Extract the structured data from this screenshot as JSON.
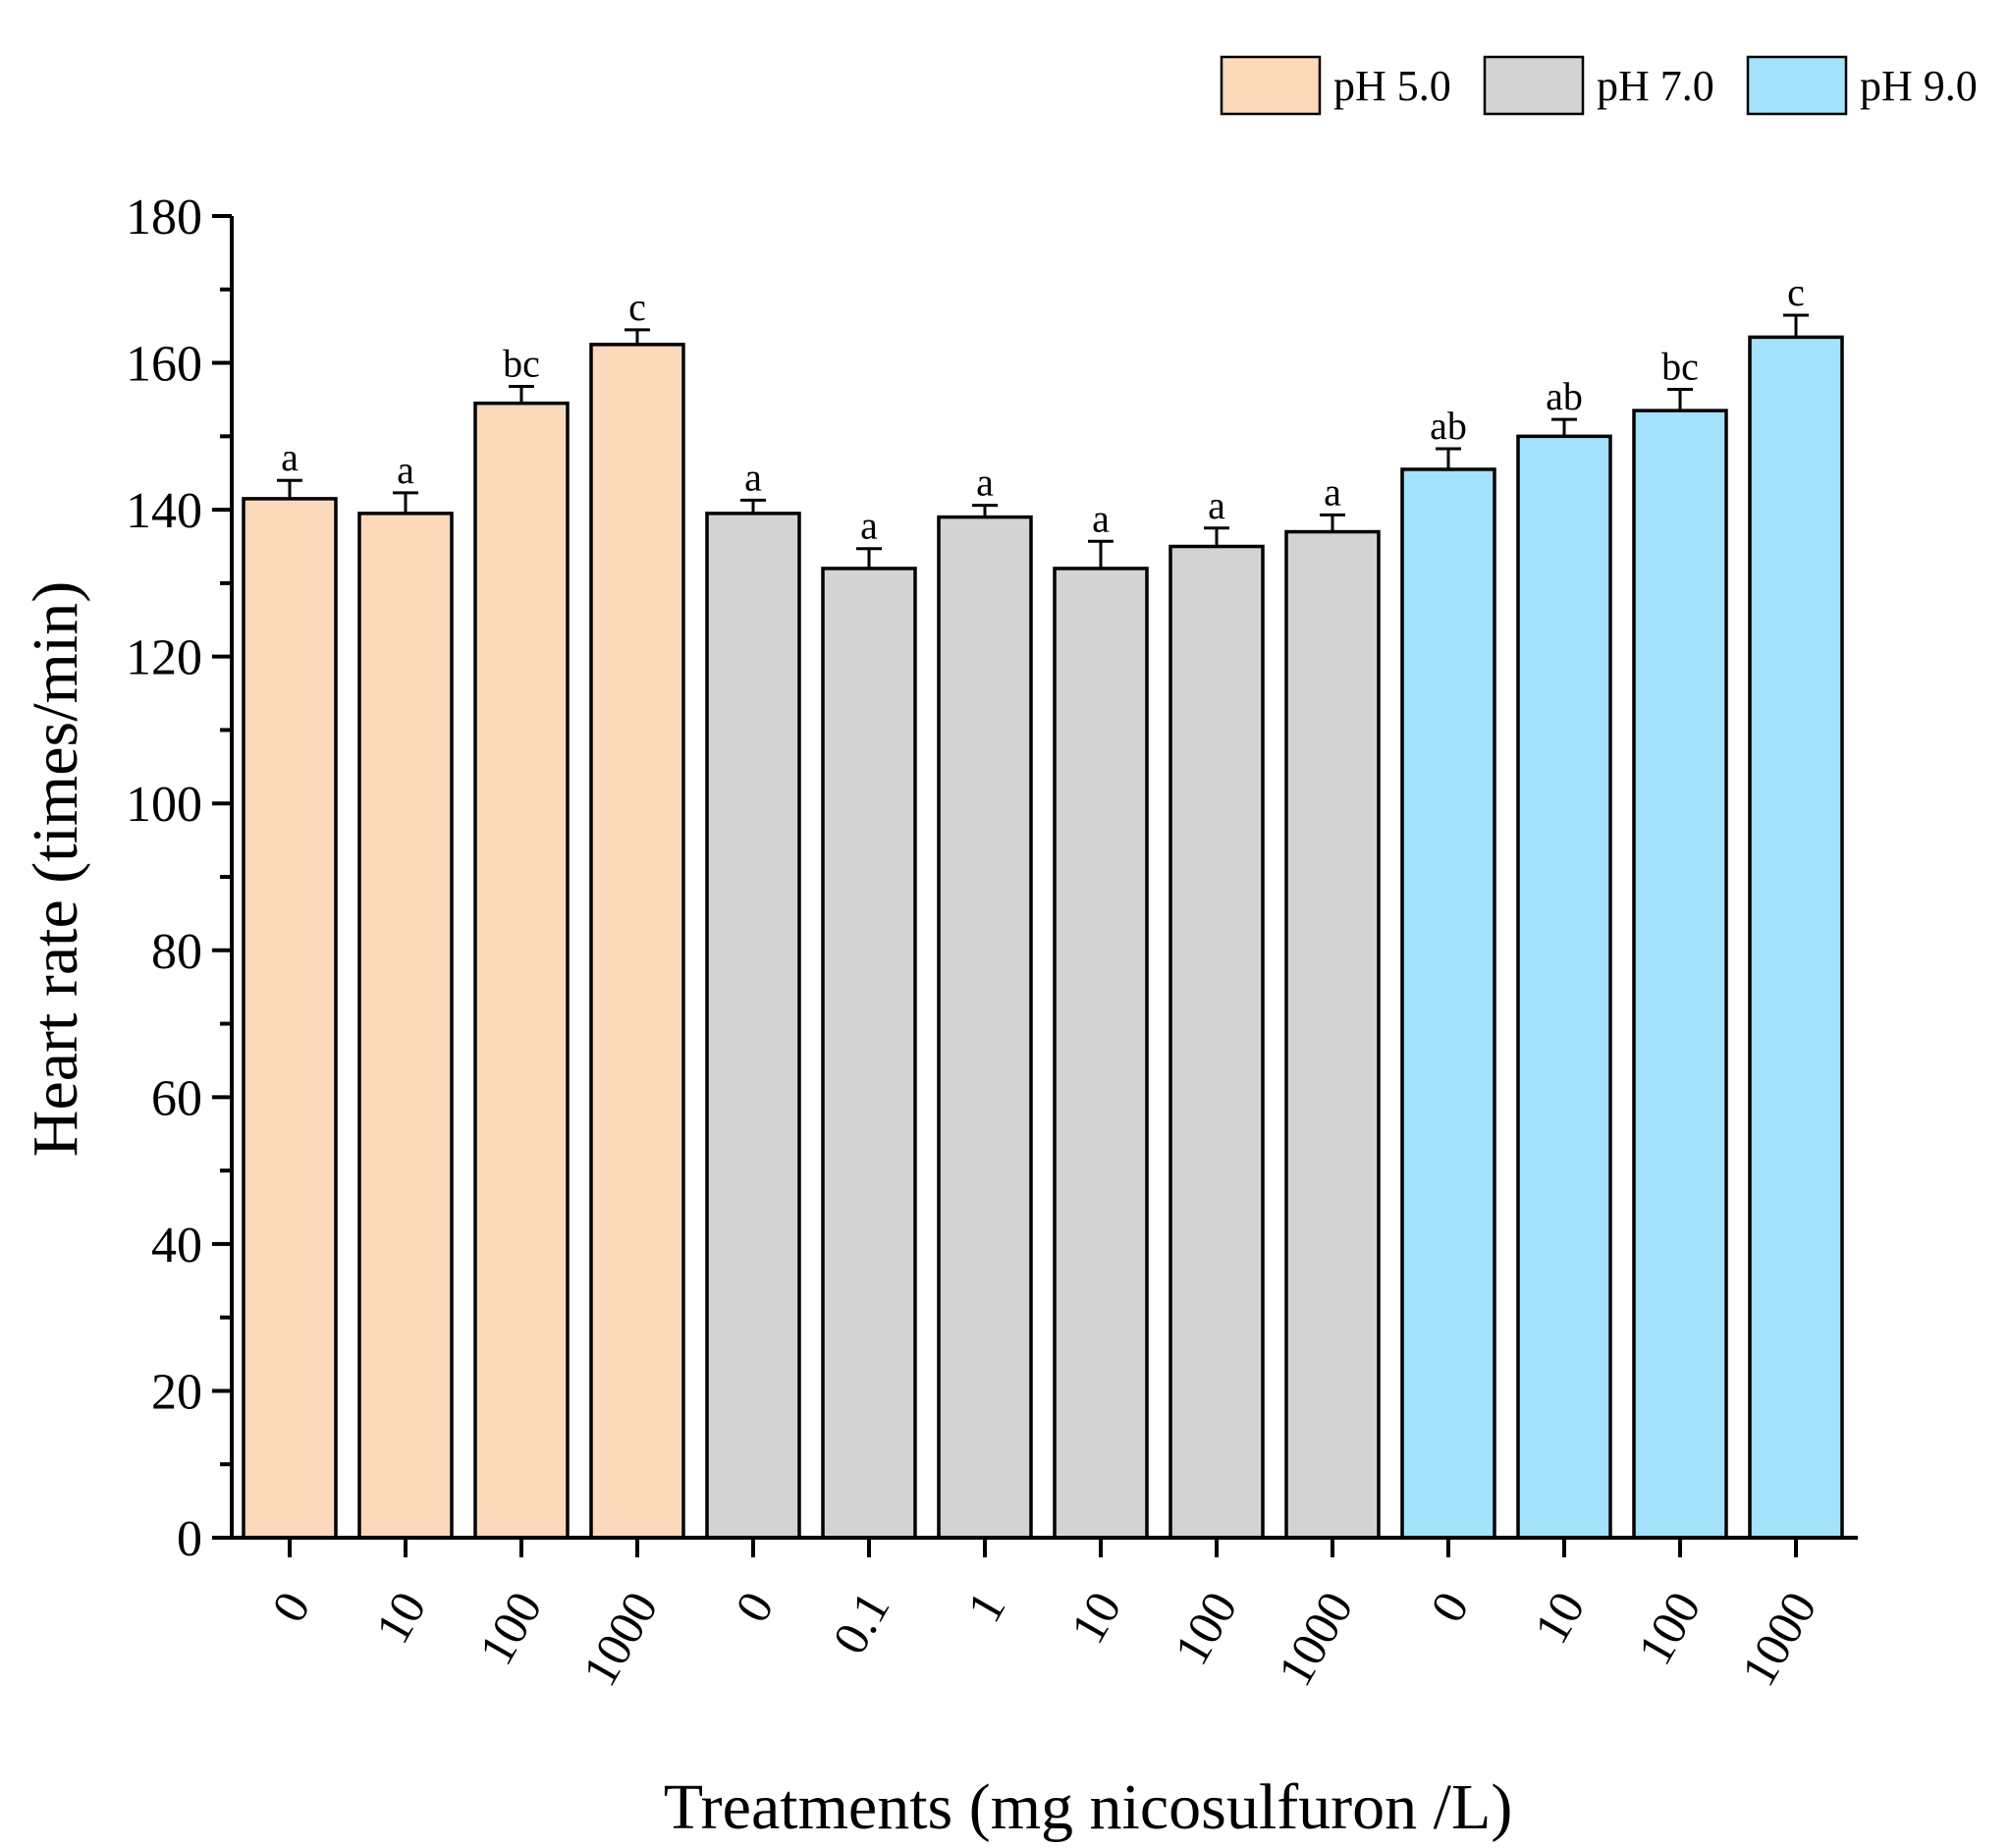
{
  "chart_data": {
    "type": "bar",
    "xlabel": "Treatments (mg nicosulfuron /L)",
    "ylabel": "Heart rate (times/min)",
    "ylim": [
      0,
      180
    ],
    "yticks": [
      "0",
      "20",
      "40",
      "60",
      "80",
      "100",
      "120",
      "140",
      "160",
      "180"
    ],
    "minor_ticks": true,
    "grid": false,
    "legend_position": "top-right",
    "series": [
      {
        "name": "pH 5.0",
        "color": "#FDD9BC",
        "categories": [
          "0",
          "10",
          "100",
          "1000"
        ],
        "values": [
          141.5,
          139.5,
          154.5,
          162.5
        ],
        "errors": [
          2.5,
          2.8,
          2.3,
          2.0
        ],
        "significance": [
          "a",
          "a",
          "bc",
          "c"
        ]
      },
      {
        "name": "pH 7.0",
        "color": "#D3D3D3",
        "categories": [
          "0",
          "0.1",
          "1",
          "10",
          "100",
          "1000"
        ],
        "values": [
          139.5,
          132.0,
          139.0,
          132.0,
          135.0,
          137.0
        ],
        "errors": [
          1.8,
          2.7,
          1.6,
          3.7,
          2.5,
          2.3
        ],
        "significance": [
          "a",
          "a",
          "a",
          "a",
          "a",
          "a"
        ]
      },
      {
        "name": "pH 9.0",
        "color": "#A4E2FC",
        "categories": [
          "0",
          "10",
          "100",
          "1000"
        ],
        "values": [
          145.5,
          150.0,
          153.5,
          163.5
        ],
        "errors": [
          2.8,
          2.3,
          2.9,
          3.0
        ],
        "significance": [
          "ab",
          "ab",
          "bc",
          "c"
        ]
      }
    ]
  }
}
